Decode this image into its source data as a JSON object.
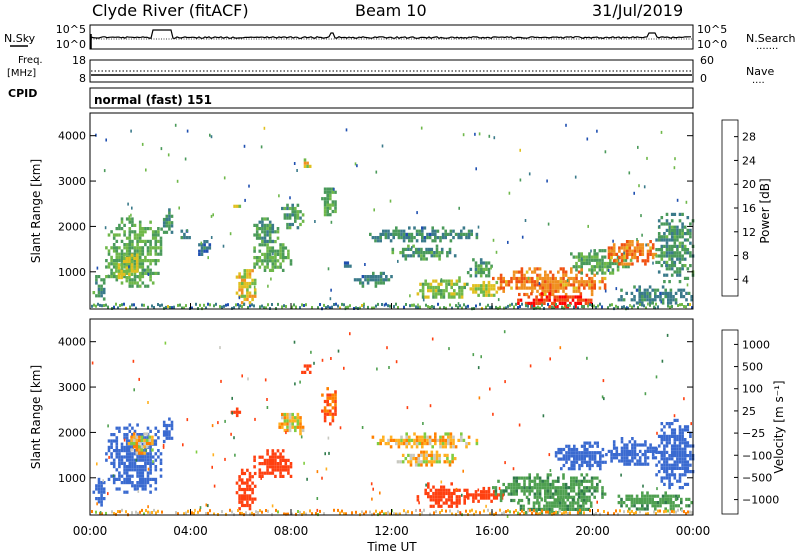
{
  "header": {
    "station": "Clyde River (fitACF)",
    "beam": "Beam 10",
    "date": "31/Jul/2019"
  },
  "nsky_panel": {
    "left_label": "N.Sky",
    "left_ticks": [
      "10^5",
      "10^0"
    ],
    "right_ticks": [
      "10^5",
      "10^0"
    ],
    "right_label": "N.Search",
    "right_dots": "·······"
  },
  "freq_panel": {
    "left_label_1": "Freq.",
    "left_label_2": "[MHz]",
    "left_ticks": [
      "18",
      "8"
    ],
    "right_ticks": [
      "60",
      "0"
    ],
    "right_label": "Nave",
    "right_dots": "····",
    "cpid_label": "CPID"
  },
  "cpid_panel": {
    "text": "normal (fast) 151"
  },
  "power_panel": {
    "ylabel": "Slant Range [km]",
    "yticks": [
      "4000",
      "3000",
      "2000",
      "1000"
    ],
    "colorbar_label": "Power [dB]",
    "colorbar_ticks": [
      "28",
      "24",
      "20",
      "16",
      "12",
      "8",
      "4"
    ],
    "colors": [
      "#0000ff",
      "#1f4fb0",
      "#3a7a8a",
      "#4a9a5a",
      "#6fb84a",
      "#e0c020",
      "#f09020",
      "#f05010",
      "#ff0000"
    ]
  },
  "velocity_panel": {
    "ylabel": "Slant Range [km]",
    "yticks": [
      "4000",
      "3000",
      "2000",
      "1000"
    ],
    "colorbar_label": "Velocity [m s⁻¹]",
    "colorbar_ticks": [
      "1000",
      "500",
      "100",
      "25",
      "−25",
      "−100",
      "−500",
      "−1000"
    ],
    "colors": [
      "#2040b0",
      "#3a6ad0",
      "#2f7a4a",
      "#4fa050",
      "#80cc40",
      "#c8c8c0",
      "#ffb020",
      "#ff8000",
      "#ff4010",
      "#ff0000"
    ]
  },
  "xaxis": {
    "ticks": [
      "00:00",
      "04:00",
      "08:00",
      "12:00",
      "16:00",
      "20:00",
      "00:00"
    ],
    "label": "Time UT"
  },
  "chart_data": [
    {
      "type": "heatmap",
      "name": "power",
      "x_range_hours": [
        0,
        24
      ],
      "y_range_km": [
        180,
        4500
      ],
      "value_unit": "dB",
      "scale": [
        0,
        32
      ],
      "regions": [
        {
          "t0": 0.1,
          "t1": 0.6,
          "r0": 400,
          "r1": 1000,
          "v": 12
        },
        {
          "t0": 0.6,
          "t1": 2.8,
          "r0": 700,
          "r1": 2200,
          "v": 14
        },
        {
          "t0": 1.0,
          "t1": 2.0,
          "r0": 800,
          "r1": 1400,
          "v": 18
        },
        {
          "t0": 2.8,
          "t1": 3.3,
          "r0": 1800,
          "r1": 2400,
          "v": 12
        },
        {
          "t0": 3.5,
          "t1": 4.0,
          "r0": 1700,
          "r1": 2000,
          "v": 10
        },
        {
          "t0": 4.2,
          "t1": 4.8,
          "r0": 1400,
          "r1": 1700,
          "v": 8
        },
        {
          "t0": 5.6,
          "t1": 6.0,
          "r0": 2400,
          "r1": 2550,
          "v": 18
        },
        {
          "t0": 5.8,
          "t1": 6.6,
          "r0": 300,
          "r1": 1200,
          "v": 20
        },
        {
          "t0": 6.5,
          "t1": 8.0,
          "r0": 1000,
          "r1": 1700,
          "v": 14
        },
        {
          "t0": 6.5,
          "t1": 7.5,
          "r0": 1700,
          "r1": 2200,
          "v": 12
        },
        {
          "t0": 7.5,
          "t1": 8.5,
          "r0": 2000,
          "r1": 2500,
          "v": 12
        },
        {
          "t0": 8.4,
          "t1": 8.8,
          "r0": 3300,
          "r1": 3500,
          "v": 20
        },
        {
          "t0": 9.2,
          "t1": 9.8,
          "r0": 2200,
          "r1": 3000,
          "v": 14
        },
        {
          "t0": 10.0,
          "t1": 10.4,
          "r0": 1100,
          "r1": 1300,
          "v": 8
        },
        {
          "t0": 10.5,
          "t1": 12.0,
          "r0": 700,
          "r1": 1000,
          "v": 10
        },
        {
          "t0": 11.0,
          "t1": 15.5,
          "r0": 1700,
          "r1": 2000,
          "v": 10
        },
        {
          "t0": 12.0,
          "t1": 14.5,
          "r0": 1300,
          "r1": 1600,
          "v": 12
        },
        {
          "t0": 13.0,
          "t1": 15.0,
          "r0": 400,
          "r1": 900,
          "v": 16
        },
        {
          "t0": 15.0,
          "t1": 16.0,
          "r0": 900,
          "r1": 1300,
          "v": 12
        },
        {
          "t0": 15.0,
          "t1": 16.5,
          "r0": 500,
          "r1": 800,
          "v": 18
        },
        {
          "t0": 16.0,
          "t1": 20.5,
          "r0": 500,
          "r1": 1100,
          "v": 24
        },
        {
          "t0": 17.0,
          "t1": 20.0,
          "r0": 250,
          "r1": 550,
          "v": 28
        },
        {
          "t0": 19.0,
          "t1": 21.5,
          "r0": 1000,
          "r1": 1500,
          "v": 14
        },
        {
          "t0": 20.5,
          "t1": 22.5,
          "r0": 1200,
          "r1": 1700,
          "v": 24
        },
        {
          "t0": 22.5,
          "t1": 24.0,
          "r0": 800,
          "r1": 2300,
          "v": 12
        },
        {
          "t0": 21.0,
          "t1": 24.0,
          "r0": 300,
          "r1": 700,
          "v": 10
        }
      ]
    },
    {
      "type": "heatmap",
      "name": "velocity",
      "x_range_hours": [
        0,
        24
      ],
      "y_range_km": [
        180,
        4500
      ],
      "value_unit": "m s-1",
      "scale": [
        -1000,
        1000
      ],
      "regions": [
        {
          "t0": 0.1,
          "t1": 0.6,
          "r0": 400,
          "r1": 1000,
          "v": 600
        },
        {
          "t0": 0.6,
          "t1": 2.8,
          "r0": 700,
          "r1": 2200,
          "v": 800
        },
        {
          "t0": 1.5,
          "t1": 2.5,
          "r0": 1500,
          "r1": 2000,
          "v": 10
        },
        {
          "t0": 2.8,
          "t1": 3.3,
          "r0": 1800,
          "r1": 2400,
          "v": 700
        },
        {
          "t0": 5.6,
          "t1": 6.0,
          "r0": 2400,
          "r1": 2550,
          "v": -200
        },
        {
          "t0": 5.8,
          "t1": 6.6,
          "r0": 300,
          "r1": 1200,
          "v": -300
        },
        {
          "t0": 6.5,
          "t1": 8.0,
          "r0": 1000,
          "r1": 1700,
          "v": -300
        },
        {
          "t0": 7.5,
          "t1": 8.5,
          "r0": 2000,
          "r1": 2500,
          "v": 10
        },
        {
          "t0": 8.4,
          "t1": 8.8,
          "r0": 3300,
          "r1": 3500,
          "v": -200
        },
        {
          "t0": 9.2,
          "t1": 9.8,
          "r0": 2200,
          "r1": 3000,
          "v": -100
        },
        {
          "t0": 11.0,
          "t1": 15.5,
          "r0": 1700,
          "r1": 2000,
          "v": 10
        },
        {
          "t0": 12.0,
          "t1": 14.5,
          "r0": 1300,
          "r1": 1600,
          "v": 10
        },
        {
          "t0": 13.0,
          "t1": 15.0,
          "r0": 400,
          "r1": 900,
          "v": -300
        },
        {
          "t0": 15.0,
          "t1": 16.5,
          "r0": 500,
          "r1": 800,
          "v": -300
        },
        {
          "t0": 16.0,
          "t1": 20.5,
          "r0": 500,
          "r1": 1100,
          "v": 200
        },
        {
          "t0": 17.0,
          "t1": 20.0,
          "r0": 250,
          "r1": 550,
          "v": 200
        },
        {
          "t0": 18.5,
          "t1": 20.5,
          "r0": 1200,
          "r1": 1800,
          "v": 800
        },
        {
          "t0": 20.5,
          "t1": 22.5,
          "r0": 1300,
          "r1": 1900,
          "v": 800
        },
        {
          "t0": 22.5,
          "t1": 24.0,
          "r0": 800,
          "r1": 2300,
          "v": 700
        },
        {
          "t0": 21.0,
          "t1": 24.0,
          "r0": 300,
          "r1": 700,
          "v": 200
        }
      ]
    }
  ]
}
